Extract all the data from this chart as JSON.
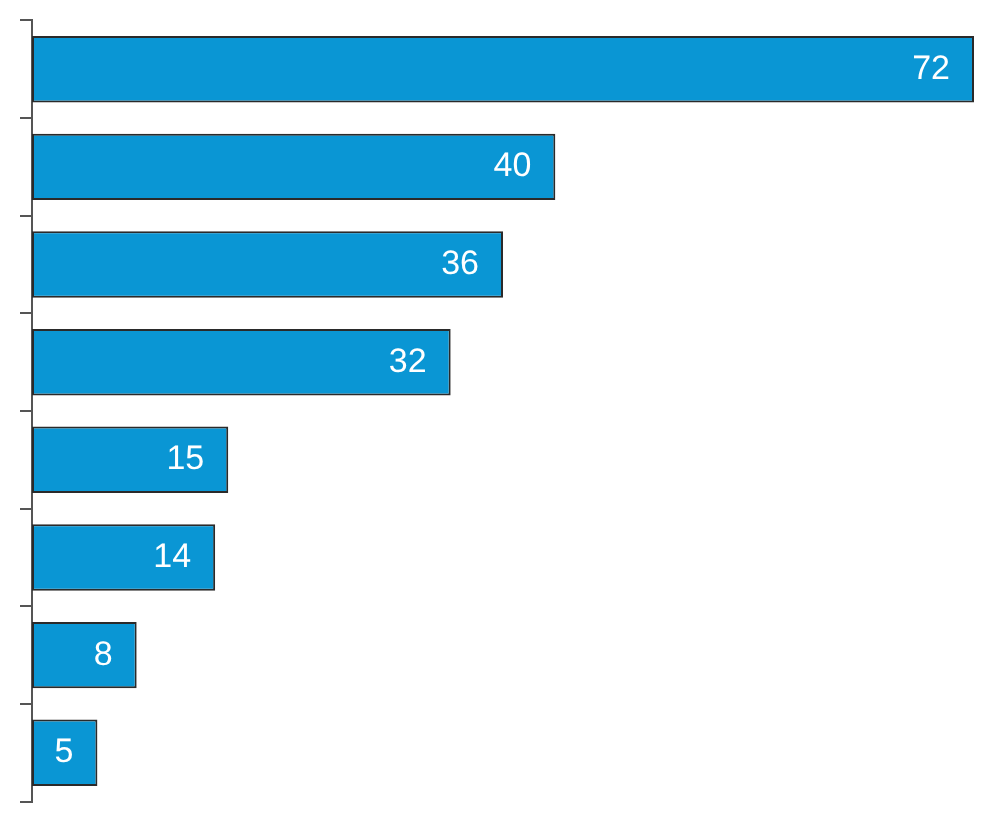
{
  "chart_data": {
    "type": "bar",
    "orientation": "horizontal",
    "categories": [
      null,
      null,
      null,
      null,
      null,
      null,
      null,
      null
    ],
    "values": [
      72,
      40,
      36,
      32,
      15,
      14,
      8,
      5
    ],
    "color": "#0a96d4",
    "data_labels": true,
    "legend": false
  }
}
